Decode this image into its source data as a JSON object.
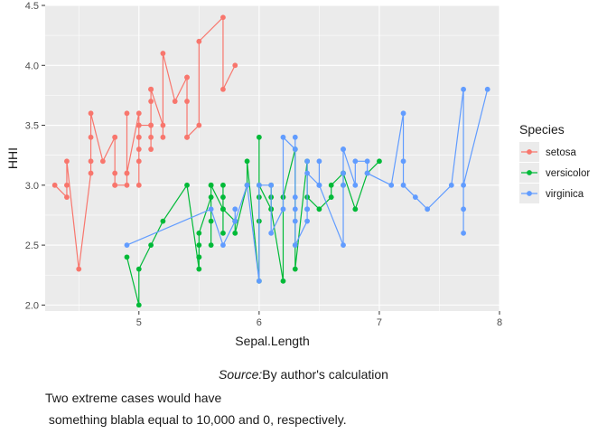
{
  "chart_data": {
    "type": "line",
    "xlabel": "Sepal.Length",
    "ylabel": "HHI",
    "xlim": [
      4.22,
      8.0
    ],
    "ylim": [
      1.95,
      4.5
    ],
    "xticks": [
      5,
      6,
      7,
      8
    ],
    "yticks": [
      2.0,
      2.5,
      3.0,
      3.5,
      4.0,
      4.5
    ],
    "grid": true,
    "legend_position": "right",
    "legend_title": "Species",
    "series": [
      {
        "name": "setosa",
        "color": "#F8766D",
        "points": [
          [
            4.3,
            3.0
          ],
          [
            4.4,
            2.9
          ],
          [
            4.4,
            3.0
          ],
          [
            4.4,
            3.2
          ],
          [
            4.5,
            2.3
          ],
          [
            4.6,
            3.1
          ],
          [
            4.6,
            3.2
          ],
          [
            4.6,
            3.4
          ],
          [
            4.6,
            3.6
          ],
          [
            4.7,
            3.2
          ],
          [
            4.8,
            3.4
          ],
          [
            4.8,
            3.1
          ],
          [
            4.8,
            3.0
          ],
          [
            4.8,
            3.4
          ],
          [
            4.8,
            3.0
          ],
          [
            4.9,
            3.0
          ],
          [
            4.9,
            3.1
          ],
          [
            4.9,
            3.6
          ],
          [
            4.9,
            3.1
          ],
          [
            5.0,
            3.6
          ],
          [
            5.0,
            3.4
          ],
          [
            5.0,
            3.0
          ],
          [
            5.0,
            3.4
          ],
          [
            5.0,
            3.2
          ],
          [
            5.0,
            3.5
          ],
          [
            5.0,
            3.3
          ],
          [
            5.0,
            3.5
          ],
          [
            5.1,
            3.5
          ],
          [
            5.1,
            3.5
          ],
          [
            5.1,
            3.8
          ],
          [
            5.1,
            3.7
          ],
          [
            5.1,
            3.3
          ],
          [
            5.1,
            3.4
          ],
          [
            5.1,
            3.8
          ],
          [
            5.1,
            3.8
          ],
          [
            5.2,
            3.5
          ],
          [
            5.2,
            3.4
          ],
          [
            5.2,
            4.1
          ],
          [
            5.3,
            3.7
          ],
          [
            5.4,
            3.9
          ],
          [
            5.4,
            3.7
          ],
          [
            5.4,
            3.9
          ],
          [
            5.4,
            3.4
          ],
          [
            5.4,
            3.4
          ],
          [
            5.5,
            3.5
          ],
          [
            5.5,
            4.2
          ],
          [
            5.7,
            4.4
          ],
          [
            5.7,
            3.8
          ],
          [
            5.8,
            4.0
          ]
        ]
      },
      {
        "name": "versicolor",
        "color": "#00BA38",
        "points": [
          [
            4.9,
            2.4
          ],
          [
            5.0,
            2.0
          ],
          [
            5.0,
            2.3
          ],
          [
            5.1,
            2.5
          ],
          [
            5.2,
            2.7
          ],
          [
            5.4,
            3.0
          ],
          [
            5.5,
            2.3
          ],
          [
            5.5,
            2.4
          ],
          [
            5.5,
            2.4
          ],
          [
            5.5,
            2.5
          ],
          [
            5.5,
            2.6
          ],
          [
            5.6,
            2.9
          ],
          [
            5.6,
            3.0
          ],
          [
            5.6,
            2.5
          ],
          [
            5.6,
            2.7
          ],
          [
            5.6,
            3.0
          ],
          [
            5.7,
            2.8
          ],
          [
            5.7,
            2.6
          ],
          [
            5.7,
            3.0
          ],
          [
            5.7,
            2.9
          ],
          [
            5.7,
            2.8
          ],
          [
            5.8,
            2.7
          ],
          [
            5.8,
            2.7
          ],
          [
            5.8,
            2.6
          ],
          [
            5.9,
            3.0
          ],
          [
            5.9,
            3.2
          ],
          [
            6.0,
            2.2
          ],
          [
            6.0,
            2.9
          ],
          [
            6.0,
            2.7
          ],
          [
            6.0,
            3.4
          ],
          [
            6.0,
            3.0
          ],
          [
            6.1,
            2.8
          ],
          [
            6.1,
            3.0
          ],
          [
            6.1,
            2.9
          ],
          [
            6.1,
            2.8
          ],
          [
            6.2,
            2.2
          ],
          [
            6.2,
            2.9
          ],
          [
            6.3,
            3.3
          ],
          [
            6.3,
            2.5
          ],
          [
            6.3,
            2.3
          ],
          [
            6.4,
            3.2
          ],
          [
            6.4,
            2.9
          ],
          [
            6.5,
            2.8
          ],
          [
            6.6,
            2.9
          ],
          [
            6.6,
            3.0
          ],
          [
            6.7,
            3.1
          ],
          [
            6.7,
            3.0
          ],
          [
            6.7,
            3.1
          ],
          [
            6.8,
            2.8
          ],
          [
            6.9,
            3.1
          ],
          [
            7.0,
            3.2
          ]
        ]
      },
      {
        "name": "virginica",
        "color": "#619CFF",
        "points": [
          [
            4.9,
            2.5
          ],
          [
            5.6,
            2.8
          ],
          [
            5.7,
            2.5
          ],
          [
            5.8,
            2.7
          ],
          [
            5.8,
            2.8
          ],
          [
            5.8,
            2.7
          ],
          [
            5.9,
            3.0
          ],
          [
            6.0,
            2.2
          ],
          [
            6.0,
            3.0
          ],
          [
            6.1,
            3.0
          ],
          [
            6.1,
            2.6
          ],
          [
            6.2,
            2.8
          ],
          [
            6.2,
            3.4
          ],
          [
            6.3,
            3.3
          ],
          [
            6.3,
            2.9
          ],
          [
            6.3,
            2.7
          ],
          [
            6.3,
            2.8
          ],
          [
            6.3,
            3.4
          ],
          [
            6.3,
            2.5
          ],
          [
            6.4,
            2.7
          ],
          [
            6.4,
            3.2
          ],
          [
            6.4,
            2.8
          ],
          [
            6.4,
            2.8
          ],
          [
            6.4,
            3.1
          ],
          [
            6.5,
            3.0
          ],
          [
            6.5,
            3.2
          ],
          [
            6.5,
            3.0
          ],
          [
            6.5,
            3.0
          ],
          [
            6.7,
            2.5
          ],
          [
            6.7,
            3.3
          ],
          [
            6.7,
            3.1
          ],
          [
            6.7,
            3.0
          ],
          [
            6.7,
            3.3
          ],
          [
            6.8,
            3.0
          ],
          [
            6.8,
            3.2
          ],
          [
            6.9,
            3.2
          ],
          [
            6.9,
            3.1
          ],
          [
            6.9,
            3.1
          ],
          [
            7.1,
            3.0
          ],
          [
            7.2,
            3.6
          ],
          [
            7.2,
            3.2
          ],
          [
            7.2,
            3.0
          ],
          [
            7.3,
            2.9
          ],
          [
            7.4,
            2.8
          ],
          [
            7.6,
            3.0
          ],
          [
            7.7,
            3.8
          ],
          [
            7.7,
            2.6
          ],
          [
            7.7,
            2.8
          ],
          [
            7.7,
            3.0
          ],
          [
            7.9,
            3.8
          ]
        ]
      }
    ]
  },
  "caption": {
    "source_label": "Source:",
    "source_text": "By author's calculation",
    "note_line1": "Two extreme cases would have",
    "note_line2": " something blabla equal to 10,000 and 0, respectively."
  },
  "colors": {
    "panel_background": "#EBEBEB",
    "grid": "#FFFFFF"
  }
}
